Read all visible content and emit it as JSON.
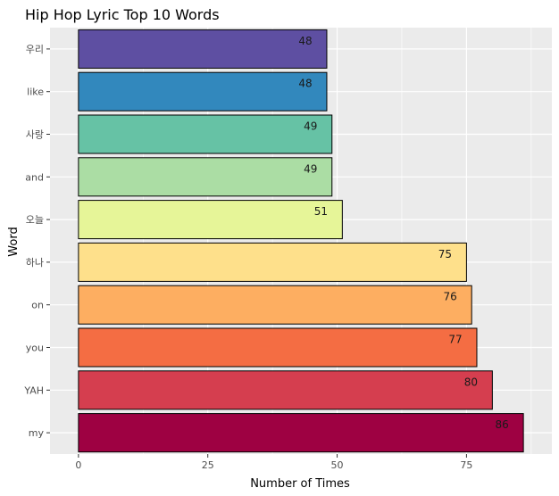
{
  "chart_data": {
    "type": "bar",
    "orientation": "horizontal",
    "title": "Hip Hop Lyric Top 10 Words",
    "xlabel": "Number of Times",
    "ylabel": "Word",
    "categories": [
      "우리",
      "like",
      "사랑",
      "and",
      "오늘",
      "하나",
      "on",
      "you",
      "YAH",
      "my"
    ],
    "values": [
      48,
      48,
      49,
      49,
      51,
      75,
      76,
      77,
      80,
      86
    ],
    "data_labels": [
      "48",
      "48",
      "49",
      "49",
      "51",
      "75",
      "76",
      "77",
      "80",
      "86"
    ],
    "colors": [
      "#5E4FA2",
      "#3288BD",
      "#66C2A5",
      "#ABDDA4",
      "#E6F598",
      "#FEE08B",
      "#FDAE61",
      "#F46D43",
      "#D53E4F",
      "#9E0142"
    ],
    "xlim": [
      -5.5,
      91.5
    ],
    "xticks": [
      0,
      25,
      50,
      75
    ],
    "xtick_labels": [
      "0",
      "25",
      "50",
      "75"
    ],
    "grid": true,
    "legend": "none",
    "panel_background": "#EBEBEB"
  }
}
